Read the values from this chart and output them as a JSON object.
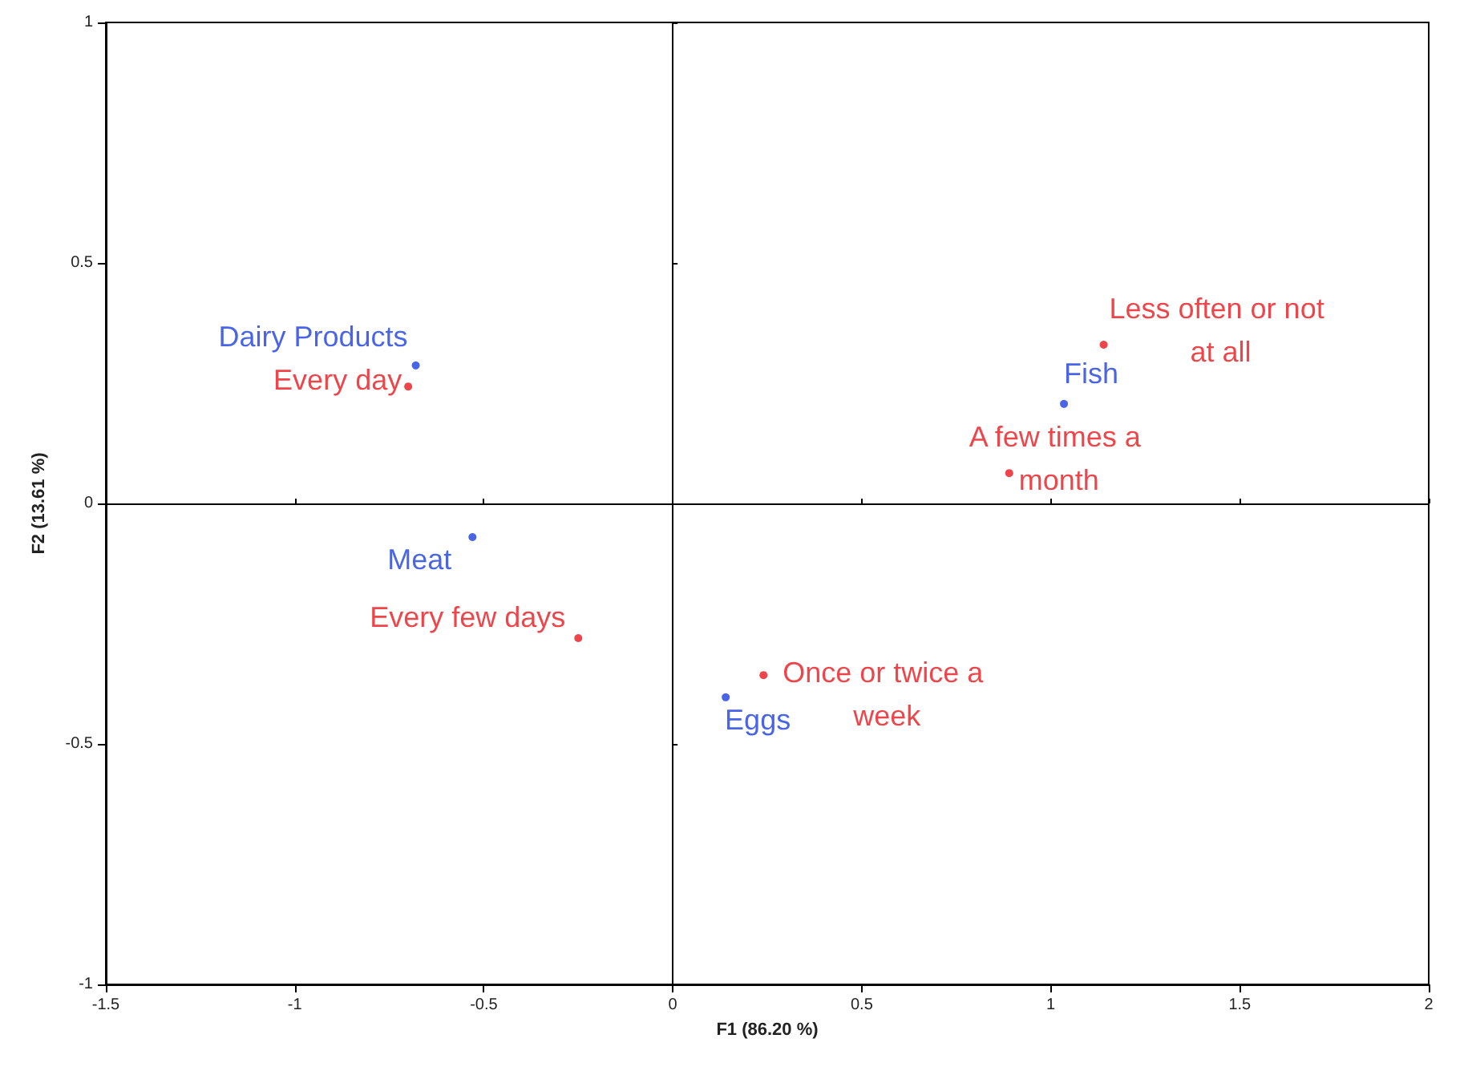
{
  "chart_data": {
    "type": "scatter",
    "xlabel": "F1 (86.20 %)",
    "ylabel": "F2 (13.61 %)",
    "xlim": [
      -1.5,
      2
    ],
    "xticks": [
      -1.5,
      -1,
      -0.5,
      0,
      0.5,
      1,
      1.5,
      2
    ],
    "ylim": [
      -1,
      1
    ],
    "yticks": [
      -1,
      -0.5,
      0,
      0.5,
      1
    ],
    "marker": "circle",
    "series": [
      {
        "color": "#1c3fe0",
        "x": [
          -0.68,
          -0.53,
          1.035,
          0.14
        ],
        "values": [
          0.287,
          -0.07,
          0.207,
          -0.403
        ],
        "value_labels": [
          "Dairy Products",
          "Meat",
          "Fish",
          "Eggs"
        ]
      },
      {
        "color": "#e8171b",
        "x": [
          -0.7,
          -0.25,
          0.24,
          0.89,
          1.14
        ],
        "values": [
          0.243,
          -0.28,
          -0.357,
          0.063,
          0.33
        ],
        "value_labels": [
          "Every day",
          "Every few days",
          "Once or twice a week",
          "A few times a month",
          "Less often or not at all"
        ]
      }
    ]
  }
}
